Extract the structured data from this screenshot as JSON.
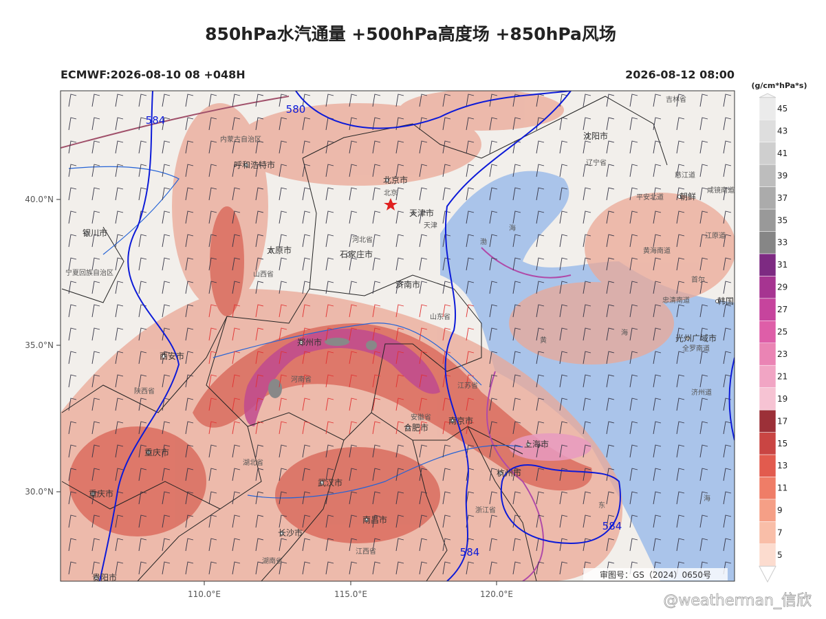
{
  "header": {
    "title": "850hPa水汽通量 +500hPa高度场 +850hPa风场",
    "left": "ECMWF:2026-08-10 08 +048H",
    "right": "2026-08-12 08:00"
  },
  "axes": {
    "yticks": [
      "40.0°N",
      "35.0°N",
      "30.0°N"
    ],
    "xticks": [
      "110.0°E",
      "115.0°E",
      "120.0°E"
    ]
  },
  "colorbar": {
    "unit": "(g/cm*hPa*s)",
    "levels": [
      5,
      7,
      9,
      11,
      13,
      15,
      17,
      19,
      21,
      23,
      25,
      27,
      29,
      31,
      33,
      35,
      37,
      39,
      41,
      43,
      45
    ],
    "colors": [
      "#fcdccf",
      "#f9bea8",
      "#f59f86",
      "#ef7d67",
      "#e25b4e",
      "#c94543",
      "#9c3038",
      "#f6c3d3",
      "#f1a5c4",
      "#ea84b4",
      "#de5ea8",
      "#c6449d",
      "#a63491",
      "#7d2a82",
      "#868686",
      "#999999",
      "#ababab",
      "#bdbdbd",
      "#cfcfcf",
      "#dedede",
      "#ebebeb"
    ]
  },
  "contours": [
    "584",
    "580",
    "584",
    "584"
  ],
  "places": [
    "吉林省",
    "沈阳市",
    "辽宁省",
    "内蒙古自治区",
    "呼和浩特市",
    "北京市",
    "北京",
    "天津市",
    "天津",
    "河北省",
    "太原市",
    "石家庄市",
    "山西省",
    "银川市",
    "宁夏回族自治区",
    "济南市",
    "山东省",
    "郑州市",
    "河南省",
    "西安市",
    "陕西省",
    "安徽省",
    "合肥市",
    "南京市",
    "江苏省",
    "上海市",
    "杭州市",
    "浙江省",
    "湖北省",
    "武汉市",
    "重庆市",
    "重庆市",
    "长沙市",
    "湖南省",
    "南昌市",
    "江西省",
    "贵阳市",
    "平安北道",
    "朝鲜",
    "黄海南道",
    "首尔",
    "忠清南道",
    "韩国",
    "光州广域市",
    "全罗南道",
    "济州道",
    "江原道",
    "慈江道",
    "咸镜南道",
    "渤",
    "海",
    "黄",
    "海",
    "东",
    "海"
  ],
  "review": "审图号：GS（2024）0650号",
  "watermark": "@weatherman_信欣"
}
